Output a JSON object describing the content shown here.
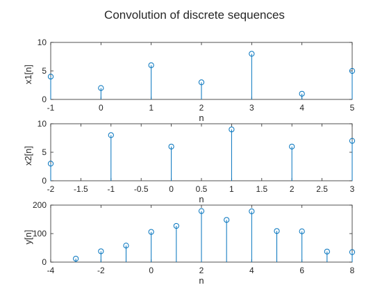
{
  "figure": {
    "title": "Convolution of discrete sequences",
    "stem_color": "#0072BD",
    "axis_color": "#262626"
  },
  "chart_data": [
    {
      "type": "stem",
      "ylabel": "x1[n]",
      "xlabel": "n",
      "xlim": [
        -1,
        5
      ],
      "ylim": [
        0,
        10
      ],
      "xticks": [
        -1,
        0,
        1,
        2,
        3,
        4,
        5
      ],
      "xtick_labels": [
        "-1",
        "0",
        "1",
        "2",
        "3",
        "4",
        "5"
      ],
      "yticks": [
        0,
        5,
        10
      ],
      "ytick_labels": [
        "0",
        "5",
        "10"
      ],
      "x": [
        -1,
        0,
        1,
        2,
        3,
        4,
        5
      ],
      "y": [
        4,
        2,
        6,
        3,
        8,
        1,
        5
      ],
      "grid": false
    },
    {
      "type": "stem",
      "ylabel": "x2[n]",
      "xlabel": "n",
      "xlim": [
        -2,
        3
      ],
      "ylim": [
        0,
        10
      ],
      "xticks": [
        -2,
        -1.5,
        -1,
        -0.5,
        0,
        0.5,
        1,
        1.5,
        2,
        2.5,
        3
      ],
      "xtick_labels": [
        "-2",
        "-1.5",
        "-1",
        "-0.5",
        "0",
        "0.5",
        "1",
        "1.5",
        "2",
        "2.5",
        "3"
      ],
      "yticks": [
        0,
        5,
        10
      ],
      "ytick_labels": [
        "0",
        "5",
        "10"
      ],
      "x": [
        -2,
        -1,
        0,
        1,
        2,
        3
      ],
      "y": [
        3,
        8,
        6,
        9,
        6,
        7
      ],
      "grid": false
    },
    {
      "type": "stem",
      "ylabel": "y[n]",
      "xlabel": "n",
      "xlim": [
        -4,
        8
      ],
      "ylim": [
        0,
        200
      ],
      "xticks": [
        -4,
        -2,
        0,
        2,
        4,
        6,
        8
      ],
      "xtick_labels": [
        "-4",
        "-2",
        "0",
        "2",
        "4",
        "6",
        "8"
      ],
      "yticks": [
        0,
        100,
        200
      ],
      "ytick_labels": [
        "0",
        "100",
        "200"
      ],
      "x": [
        -3,
        -2,
        -1,
        0,
        1,
        2,
        3,
        4,
        5,
        6,
        7,
        8
      ],
      "y": [
        12,
        38,
        58,
        106,
        127,
        179,
        148,
        178,
        109,
        108,
        37,
        35
      ],
      "grid": false
    }
  ]
}
